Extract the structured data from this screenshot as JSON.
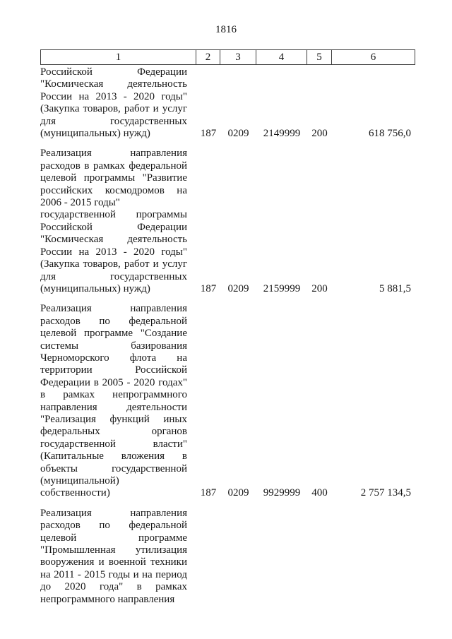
{
  "page": {
    "number": "1816"
  },
  "colors": {
    "background": "#ffffff",
    "text": "#161616",
    "table_border": "#3d3d3d"
  },
  "table": {
    "header": [
      "1",
      "2",
      "3",
      "4",
      "5",
      "6"
    ],
    "rows": [
      {
        "paragraphs": [
          "Российской Федерации \"Космическая деятельность России на 2013 - 2020 годы\" (Закупка товаров, работ и услуг для государственных (муниципальных) нужд)"
        ],
        "col2": "187",
        "col3": "0209",
        "col4": "2149999",
        "col5": "200",
        "col6": "618 756,0"
      },
      {
        "paragraphs": [
          "Реализация направления расходов в рамках федеральной целевой программы \"Развитие российских космодромов на 2006 - 2015 годы\"",
          "государственной программы Российской Федерации \"Космическая деятельность России на 2013 - 2020 годы\" (Закупка товаров, работ и услуг для государственных (муниципальных) нужд)"
        ],
        "col2": "187",
        "col3": "0209",
        "col4": "2159999",
        "col5": "200",
        "col6": "5 881,5"
      },
      {
        "paragraphs": [
          "Реализация направления расходов по федеральной целевой программе \"Создание системы базирования Черноморского флота на территории Российской Федерации в 2005 - 2020 годах\" в рамках непрограммного направления деятельности \"Реализация функций иных федеральных органов государственной власти\" (Капитальные вложения в объекты государственной (муниципальной) собственности)"
        ],
        "col2": "187",
        "col3": "0209",
        "col4": "9929999",
        "col5": "400",
        "col6": "2 757 134,5"
      },
      {
        "paragraphs": [
          "Реализация направления расходов по федеральной целевой программе \"Промышленная утилизация вооружения и военной техники на 2011 - 2015 годы и на период до 2020 года\" в рамках непрограммного направления"
        ],
        "col2": "",
        "col3": "",
        "col4": "",
        "col5": "",
        "col6": ""
      }
    ]
  }
}
